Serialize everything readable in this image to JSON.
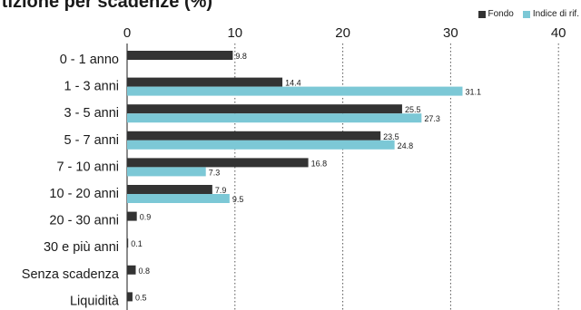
{
  "title": "rtizione per scadenze (%)",
  "legend": {
    "items": [
      {
        "label": "Fondo",
        "color": "#333333"
      },
      {
        "label": "Indice di rif.",
        "color": "#7cc8d6"
      }
    ]
  },
  "chart_data": {
    "type": "bar",
    "orientation": "horizontal",
    "title": "rtizione per scadenze (%)",
    "xlim": [
      0,
      40
    ],
    "xticks": [
      0,
      10,
      20,
      30,
      40
    ],
    "grid": true,
    "legend_position": "top-right",
    "categories": [
      "0 - 1 anno",
      "1 - 3 anni",
      "3 - 5 anni",
      "5 - 7 anni",
      "7 - 10 anni",
      "10 - 20 anni",
      "20 - 30 anni",
      "30 e più anni",
      "Senza scadenza",
      "Liquidità"
    ],
    "series": [
      {
        "name": "Fondo",
        "color": "#333333",
        "values": [
          9.8,
          14.4,
          25.5,
          23.5,
          16.8,
          7.9,
          0.9,
          0.1,
          0.8,
          0.5
        ],
        "labels": [
          "9.8",
          "14.4",
          "25.5",
          "23.5",
          "16.8",
          "7.9",
          "0.9",
          "0.1",
          "0.8",
          "0.5"
        ]
      },
      {
        "name": "Indice di rif.",
        "color": "#7cc8d6",
        "values": [
          null,
          31.1,
          27.3,
          24.8,
          7.3,
          9.5,
          null,
          null,
          null,
          null
        ],
        "labels": [
          null,
          "31.1",
          "27.3",
          "24.8",
          "7.3",
          "9.5",
          null,
          null,
          null,
          null
        ]
      }
    ]
  }
}
